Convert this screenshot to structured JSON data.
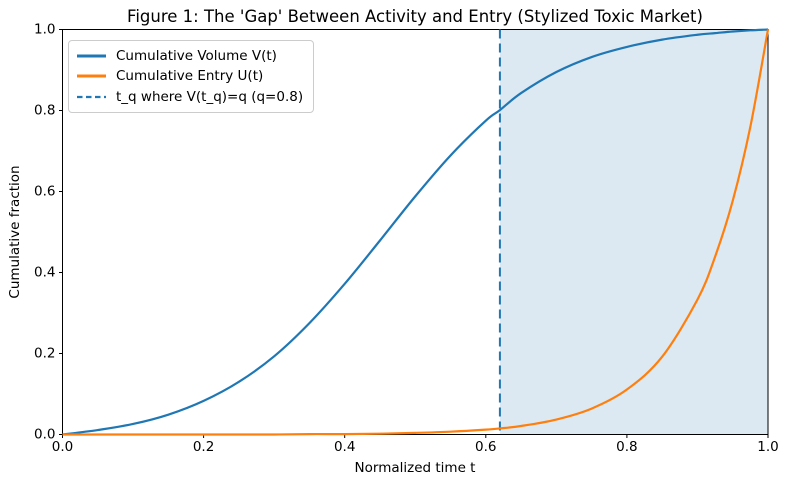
{
  "figure": {
    "title": "Figure 1: The 'Gap' Between Activity and Entry (Stylized Toxic Market)",
    "xlabel": "Normalized time t",
    "ylabel": "Cumulative fraction"
  },
  "legend": {
    "items": [
      {
        "label": "Cumulative Volume V(t)",
        "style": "solid",
        "color": "#1f77b4"
      },
      {
        "label": "Cumulative Entry U(t)",
        "style": "solid",
        "color": "#ff7f0e"
      },
      {
        "label": "t_q where V(t_q)=q (q=0.8)",
        "style": "dashed",
        "color": "#1f77b4"
      }
    ]
  },
  "chart_data": {
    "type": "line",
    "title": "Figure 1: The 'Gap' Between Activity and Entry (Stylized Toxic Market)",
    "xlabel": "Normalized time t",
    "ylabel": "Cumulative fraction",
    "xlim": [
      0.0,
      1.0
    ],
    "ylim": [
      0.0,
      1.0
    ],
    "xticks": [
      0.0,
      0.2,
      0.4,
      0.6,
      0.8,
      1.0
    ],
    "yticks": [
      0.0,
      0.2,
      0.4,
      0.6,
      0.8,
      1.0
    ],
    "grid": false,
    "legend_position": "upper left",
    "x": [
      0,
      0.05,
      0.1,
      0.15,
      0.2,
      0.25,
      0.3,
      0.35,
      0.4,
      0.45,
      0.5,
      0.55,
      0.6,
      0.62,
      0.65,
      0.7,
      0.75,
      0.8,
      0.85,
      0.9,
      0.925,
      0.95,
      0.975,
      1.0
    ],
    "series": [
      {
        "name": "Cumulative Volume V(t)",
        "color": "#1f77b4",
        "style": "solid",
        "values": [
          0,
          0.011,
          0.026,
          0.049,
          0.083,
          0.13,
          0.193,
          0.275,
          0.372,
          0.479,
          0.588,
          0.689,
          0.775,
          0.801,
          0.843,
          0.895,
          0.932,
          0.957,
          0.975,
          0.987,
          0.991,
          0.995,
          0.998,
          1.0
        ]
      },
      {
        "name": "Cumulative Entry U(t)",
        "color": "#ff7f0e",
        "style": "solid",
        "values": [
          0,
          0.0,
          0.0,
          0.0,
          0.0,
          0.0,
          0.0,
          0.001,
          0.001,
          0.002,
          0.004,
          0.007,
          0.012,
          0.015,
          0.021,
          0.037,
          0.064,
          0.111,
          0.192,
          0.333,
          0.439,
          0.577,
          0.76,
          1.0
        ]
      }
    ],
    "vline": {
      "x": 0.62,
      "color": "#1f77b4",
      "style": "dashed",
      "label": "t_q where V(t_q)=q (q=0.8)"
    },
    "shaded_region": {
      "from": 0.62,
      "to": 1.0,
      "color": "#dce9f3"
    },
    "q": 0.8,
    "t_q": 0.62
  }
}
